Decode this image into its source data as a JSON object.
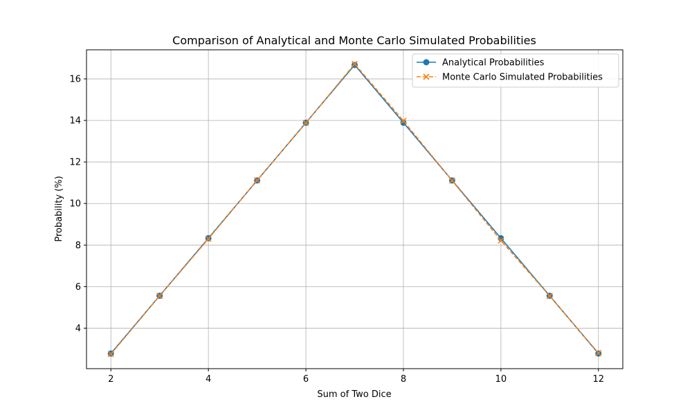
{
  "chart_data": {
    "type": "line",
    "title": "Comparison of Analytical and Monte Carlo Simulated Probabilities",
    "xlabel": "Sum of Two Dice",
    "ylabel": "Probability (%)",
    "x": [
      2,
      3,
      4,
      5,
      6,
      7,
      8,
      9,
      10,
      11,
      12
    ],
    "xlim": [
      1.5,
      12.5
    ],
    "ylim": [
      2.05,
      17.4
    ],
    "xticks": [
      2,
      4,
      6,
      8,
      10,
      12
    ],
    "yticks": [
      4,
      6,
      8,
      10,
      12,
      14,
      16
    ],
    "grid": true,
    "legend_position": "top-right",
    "series": [
      {
        "name": "Analytical Probabilities",
        "values": [
          2.78,
          5.56,
          8.33,
          11.11,
          13.89,
          16.67,
          13.89,
          11.11,
          8.33,
          5.56,
          2.78
        ],
        "color": "#1f77b4",
        "marker": "circle",
        "linestyle": "solid"
      },
      {
        "name": "Monte Carlo Simulated Probabilities",
        "values": [
          2.75,
          5.55,
          8.3,
          11.12,
          13.88,
          16.72,
          13.98,
          11.1,
          8.22,
          5.55,
          2.8
        ],
        "color": "#ff7f0e",
        "marker": "x",
        "linestyle": "dashed"
      }
    ]
  }
}
